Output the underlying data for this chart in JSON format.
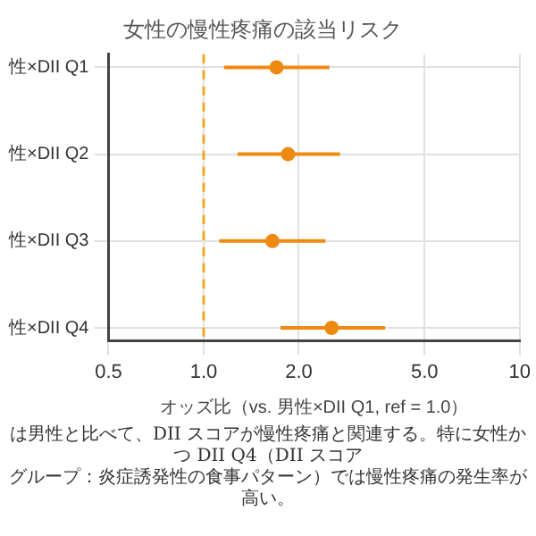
{
  "chart_data": {
    "type": "scatter",
    "title": "女性の慢性疼痛の該当リスク",
    "xlabel": "オッズ比（vs. 男性×DII Q1, ref = 1.0）",
    "orientation": "horizontal",
    "categories": [
      "性×DII Q1",
      "性×DII Q2",
      "性×DII Q3",
      "性×DII Q4"
    ],
    "values": [
      1.7,
      1.85,
      1.65,
      2.54
    ],
    "errors": [
      [
        1.16,
        2.5
      ],
      [
        1.28,
        2.7
      ],
      [
        1.12,
        2.43
      ],
      [
        1.75,
        3.75
      ]
    ],
    "color": "#ee8a12",
    "marker": "circle",
    "log": "x",
    "grid": true,
    "xlim": [
      0.5,
      10
    ],
    "xticks": [
      0.5,
      {
        "value": 1,
        "label": "1.0"
      },
      {
        "value": 2,
        "label": "2.0"
      },
      {
        "value": 5,
        "label": "5.0"
      },
      10
    ],
    "ref_lines": [
      {
        "axis": "x",
        "value": 1,
        "color": "#f5a623",
        "line_style": "dashed"
      }
    ],
    "annotations": [
      "は男性と比べて、DII スコアが慢性疼痛と関連する。特に女性かつ DII Q4（DII スコア",
      "グループ：炎症誘発性の食事パターン）では慢性疼痛の発生率が高い。"
    ]
  }
}
